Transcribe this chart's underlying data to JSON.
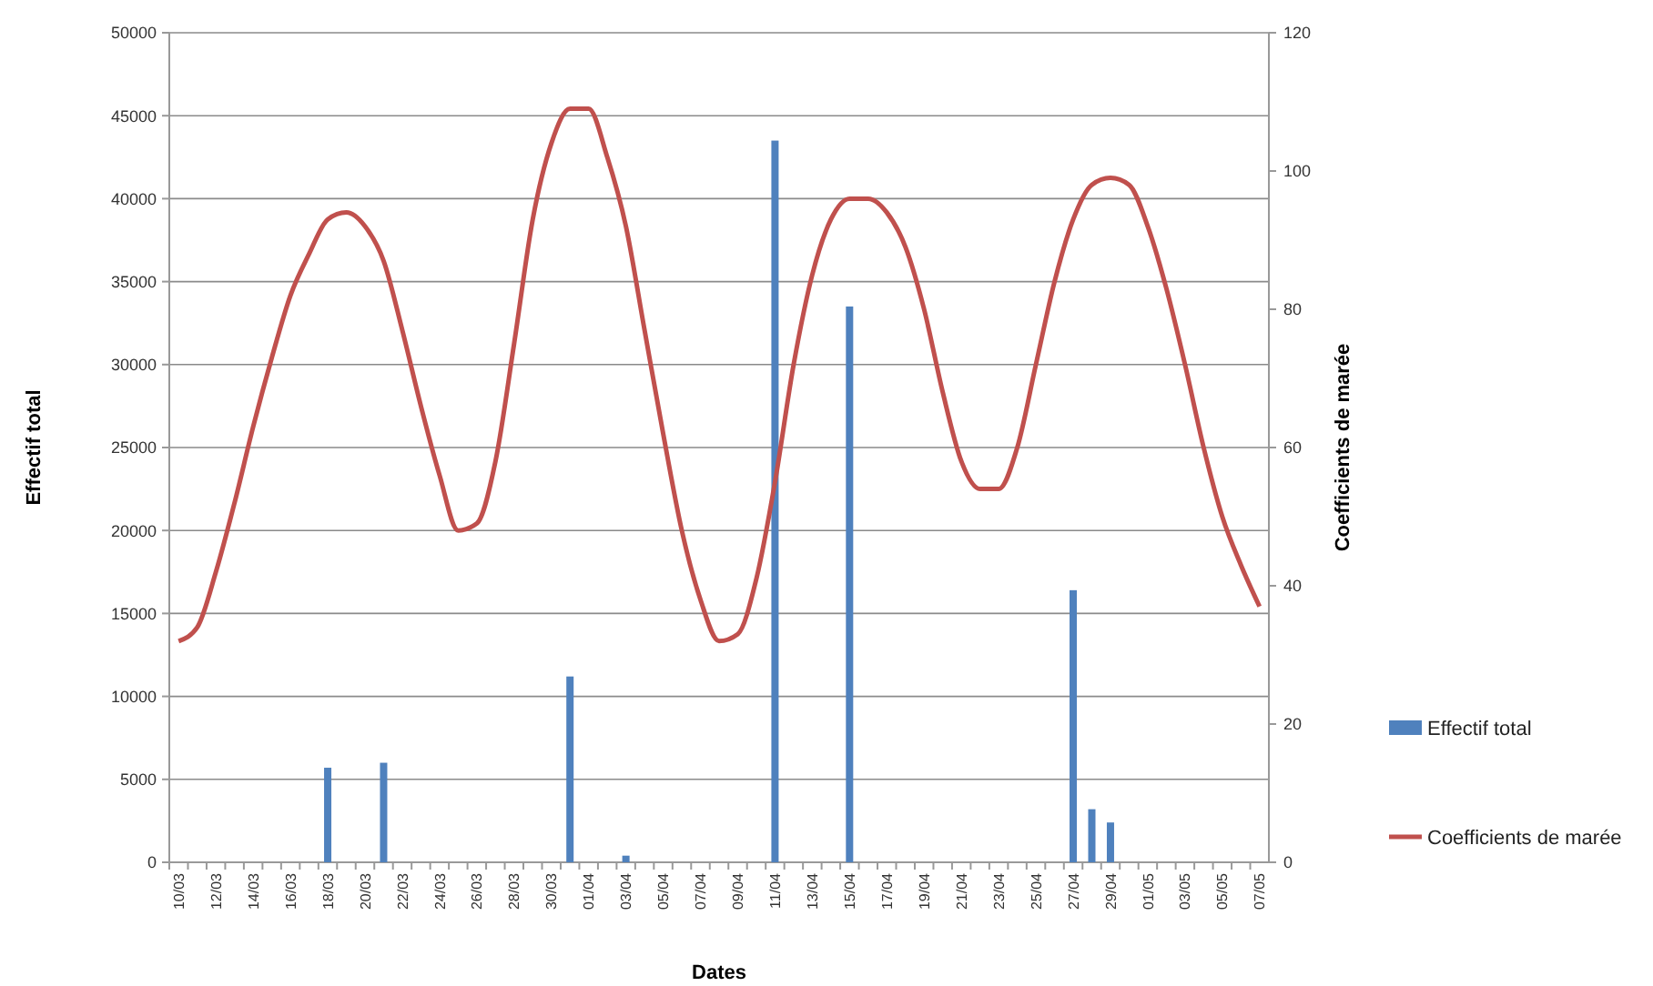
{
  "chart_data": {
    "type": "bar",
    "xlabel": "Dates",
    "ylabel": "Effectif total",
    "y2label": "Coefficients de marée",
    "categories": [
      "10/03",
      null,
      "12/03",
      null,
      "14/03",
      null,
      "16/03",
      null,
      "18/03",
      null,
      "20/03",
      null,
      "22/03",
      null,
      "24/03",
      null,
      "26/03",
      null,
      "28/03",
      null,
      "30/03",
      null,
      "01/04",
      null,
      "03/04",
      null,
      "05/04",
      null,
      "07/04",
      null,
      "09/04",
      null,
      "11/04",
      null,
      "13/04",
      null,
      "15/04",
      null,
      "17/04",
      null,
      "19/04",
      null,
      "21/04",
      null,
      "23/04",
      null,
      "25/04",
      null,
      "27/04",
      null,
      "29/04",
      null,
      "01/05",
      null,
      "03/05",
      null,
      "05/05",
      null,
      "07/05"
    ],
    "series": [
      {
        "name": "Effectif total",
        "color": "#4f81bd",
        "values": [
          null,
          null,
          null,
          null,
          null,
          null,
          null,
          null,
          5700,
          null,
          null,
          6000,
          null,
          null,
          null,
          null,
          null,
          null,
          null,
          null,
          null,
          11200,
          null,
          null,
          400,
          null,
          null,
          null,
          null,
          null,
          null,
          null,
          43500,
          null,
          null,
          null,
          33500,
          null,
          null,
          null,
          null,
          null,
          null,
          null,
          null,
          null,
          null,
          null,
          16400,
          3200,
          2400,
          null,
          null,
          null,
          null,
          null,
          null,
          null,
          null
        ]
      },
      {
        "name": "Coefficients de marée",
        "type": "line",
        "axis": "y2",
        "color": "#c0504d",
        "values": [
          32,
          34,
          42,
          52,
          63,
          73,
          82,
          88,
          93,
          94,
          92,
          87,
          77,
          66,
          56,
          48,
          49,
          58,
          75,
          93,
          104,
          109,
          109,
          102,
          92,
          77,
          62,
          48,
          38,
          32,
          33,
          41,
          55,
          72,
          85,
          93,
          96,
          96,
          94,
          89,
          80,
          68,
          58,
          54,
          54,
          60,
          72,
          84,
          93,
          98,
          99,
          98,
          92,
          83,
          72,
          60,
          50,
          43,
          37
        ]
      }
    ],
    "ylim": [
      0,
      50000
    ],
    "yticks": [
      0,
      5000,
      10000,
      15000,
      20000,
      25000,
      30000,
      35000,
      40000,
      45000,
      50000
    ],
    "y2lim": [
      0,
      120
    ],
    "y2ticks": [
      0,
      20,
      40,
      60,
      80,
      100,
      120
    ],
    "grid": "y",
    "legend": "right",
    "marker": "none",
    "line_style": "solid"
  }
}
